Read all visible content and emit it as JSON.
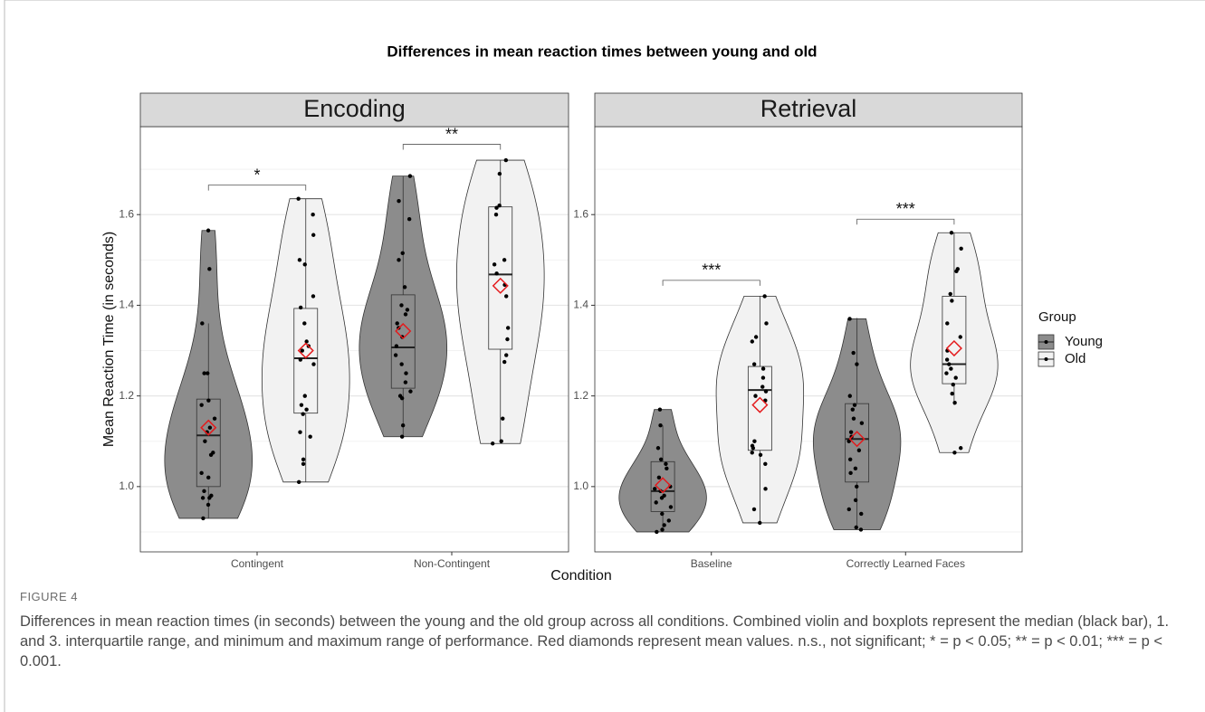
{
  "chart_data": {
    "type": "violin",
    "title": "Differences in mean reaction times between young and old",
    "y_label": "Mean Reaction Time (in seconds)",
    "x_label": "Condition",
    "ylim": [
      0.856,
      1.794
    ],
    "yticks": [
      {
        "value": 1,
        "label": "1.0"
      },
      {
        "value": 1.2,
        "label": "1.2"
      },
      {
        "value": 1.4,
        "label": "1.4"
      },
      {
        "value": 1.6,
        "label": "1.6"
      }
    ],
    "minor_yticks": [
      0.9,
      1.1,
      1.3,
      1.5,
      1.7
    ],
    "grid": true,
    "legend_title": "Group",
    "legend": "right",
    "series": [
      {
        "name": "Young",
        "color": "#8c8c8c"
      },
      {
        "name": "Old",
        "color": "#f2f2f2"
      }
    ],
    "mean_color": "#e41a1c",
    "facets": [
      {
        "name": "Encoding",
        "categories": [
          "Contingent",
          "Non-Contingent"
        ],
        "stats": [
          [
            {
              "whisker_low": 0.93,
              "q1": 1.0,
              "median": 1.113,
              "q3": 1.193,
              "whisker_high": 1.36,
              "mean": 1.13,
              "points": [
                1.565,
                1.48,
                1.36,
                1.25,
                1.25,
                1.19,
                1.18,
                1.15,
                1.13,
                1.12,
                1.1,
                1.075,
                1.07,
                1.03,
                1.02,
                0.99,
                0.98,
                0.975,
                0.975,
                0.96,
                0.93
              ]
            },
            {
              "whisker_low": 1.01,
              "q1": 1.162,
              "median": 1.283,
              "q3": 1.393,
              "whisker_high": 1.635,
              "mean": 1.3,
              "points": [
                1.635,
                1.6,
                1.555,
                1.5,
                1.49,
                1.42,
                1.395,
                1.36,
                1.32,
                1.31,
                1.3,
                1.28,
                1.27,
                1.2,
                1.18,
                1.17,
                1.16,
                1.12,
                1.11,
                1.06,
                1.05,
                1.01
              ]
            }
          ],
          [
            {
              "whisker_low": 1.11,
              "q1": 1.217,
              "median": 1.307,
              "q3": 1.423,
              "whisker_high": 1.685,
              "mean": 1.343,
              "points": [
                1.685,
                1.63,
                1.59,
                1.515,
                1.5,
                1.44,
                1.4,
                1.39,
                1.38,
                1.36,
                1.35,
                1.33,
                1.31,
                1.29,
                1.27,
                1.25,
                1.23,
                1.21,
                1.2,
                1.195,
                1.135,
                1.11
              ]
            },
            {
              "whisker_low": 1.095,
              "q1": 1.303,
              "median": 1.468,
              "q3": 1.617,
              "whisker_high": 1.72,
              "mean": 1.443,
              "points": [
                1.72,
                1.69,
                1.62,
                1.615,
                1.6,
                1.5,
                1.49,
                1.47,
                1.445,
                1.42,
                1.35,
                1.325,
                1.29,
                1.275,
                1.15,
                1.1,
                1.095
              ]
            }
          ]
        ],
        "signif": [
          {
            "label": "*",
            "y": 1.665
          },
          {
            "label": "**",
            "y": 1.755
          }
        ]
      },
      {
        "name": "Retrieval",
        "categories": [
          "Baseline",
          "Correctly Learned Faces"
        ],
        "stats": [
          [
            {
              "whisker_low": 0.9,
              "q1": 0.945,
              "median": 0.99,
              "q3": 1.055,
              "whisker_high": 1.135,
              "mean": 1.003,
              "points": [
                1.17,
                1.135,
                1.085,
                1.06,
                1.05,
                1.04,
                1.02,
                1.0,
                0.995,
                0.99,
                0.98,
                0.975,
                0.965,
                0.955,
                0.94,
                0.925,
                0.915,
                0.905,
                0.9
              ]
            },
            {
              "whisker_low": 0.92,
              "q1": 1.08,
              "median": 1.213,
              "q3": 1.265,
              "whisker_high": 1.42,
              "mean": 1.18,
              "points": [
                1.42,
                1.36,
                1.33,
                1.32,
                1.27,
                1.26,
                1.24,
                1.22,
                1.21,
                1.2,
                1.19,
                1.1,
                1.09,
                1.085,
                1.075,
                1.07,
                1.05,
                0.995,
                0.95,
                0.92
              ]
            }
          ],
          [
            {
              "whisker_low": 0.905,
              "q1": 1.01,
              "median": 1.105,
              "q3": 1.183,
              "whisker_high": 1.372,
              "mean": 1.105,
              "points": [
                1.37,
                1.295,
                1.27,
                1.2,
                1.18,
                1.17,
                1.15,
                1.14,
                1.12,
                1.11,
                1.1,
                1.08,
                1.06,
                1.04,
                1.03,
                1.0,
                0.97,
                0.95,
                0.94,
                0.91,
                0.905
              ]
            },
            {
              "whisker_low": 1.18,
              "q1": 1.227,
              "median": 1.27,
              "q3": 1.42,
              "whisker_high": 1.56,
              "mean": 1.305,
              "points": [
                1.56,
                1.525,
                1.48,
                1.475,
                1.425,
                1.41,
                1.36,
                1.33,
                1.3,
                1.28,
                1.27,
                1.26,
                1.25,
                1.24,
                1.225,
                1.205,
                1.185,
                1.085,
                1.075
              ]
            }
          ]
        ],
        "signif": [
          {
            "label": "***",
            "y": 1.455
          },
          {
            "label": "***",
            "y": 1.59
          }
        ]
      }
    ]
  },
  "caption": {
    "label": "FIGURE 4",
    "text": "Differences in mean reaction times (in seconds) between the young and the old group across all conditions. Combined violin and boxplots represent the median (black bar), 1. and 3. interquartile range, and minimum and maximum range of performance. Red diamonds represent mean values. n.s., not significant; * = p < 0.05; ** = p < 0.01; *** = p < 0.001."
  }
}
